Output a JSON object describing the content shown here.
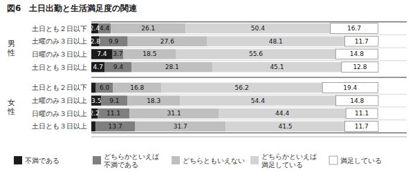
{
  "chart_data": {
    "type": "bar",
    "title": "図6　土日出勤と生活満足度の関連",
    "orientation": "horizontal",
    "stacked": true,
    "data_labels": true,
    "tick_labels": "y",
    "legend": "bottom",
    "grid": false,
    "xlim": [
      0,
      110
    ],
    "categories": [
      "土日とも２日以下",
      "土曜のみ３日以上",
      "日曜のみ３日以上",
      "土日とも３日以上",
      "土日とも２日以下",
      "土曜のみ３日以上",
      "日曜のみ３日以上",
      "土日とも３日以上"
    ],
    "annotations": [
      "男\n性",
      "女\n性"
    ],
    "series": [
      {
        "name": "不満である",
        "color": "#1c1c1c",
        "values": [
          2.4,
          2.8,
          7.4,
          4.7,
          1.6,
          3.5,
          2.2,
          1.5
        ],
        "value_labels": [
          "2.4",
          "2.8",
          "7.4",
          "4.7",
          null,
          "3.5",
          "2.2",
          null
        ]
      },
      {
        "name": "どちらかといえば\n不満である",
        "color": "#7f7f7f",
        "values": [
          4.4,
          9.9,
          3.7,
          9.4,
          6.0,
          9.1,
          11.1,
          13.7
        ],
        "value_labels": [
          "4.4",
          "9.9",
          "3.7",
          "9.4",
          "6.0",
          "9.1",
          "11.1",
          "13.7"
        ]
      },
      {
        "name": "どちらともいえない",
        "color": "#bfbfbf",
        "values": [
          26.1,
          27.6,
          18.5,
          28.1,
          16.8,
          18.3,
          31.1,
          31.7
        ],
        "value_labels": [
          "26.1",
          "27.6",
          "18.5",
          "28.1",
          "16.8",
          "18.3",
          "31.1",
          "31.7"
        ]
      },
      {
        "name": "どちらかといえば\n満足している",
        "color": "#d4d4d4",
        "values": [
          50.4,
          48.1,
          55.6,
          45.1,
          56.2,
          54.4,
          44.4,
          41.5
        ],
        "value_labels": [
          "50.4",
          "48.1",
          "55.6",
          "45.1",
          "56.2",
          "54.4",
          "44.4",
          "41.5"
        ]
      },
      {
        "name": "満足している",
        "color": "#ffffff",
        "values": [
          16.7,
          11.7,
          14.8,
          12.8,
          19.4,
          14.8,
          11.1,
          11.7
        ],
        "value_labels": [
          "16.7",
          "11.7",
          "14.8",
          "12.8",
          "19.4",
          "14.8",
          "11.1",
          "11.7"
        ]
      }
    ]
  }
}
